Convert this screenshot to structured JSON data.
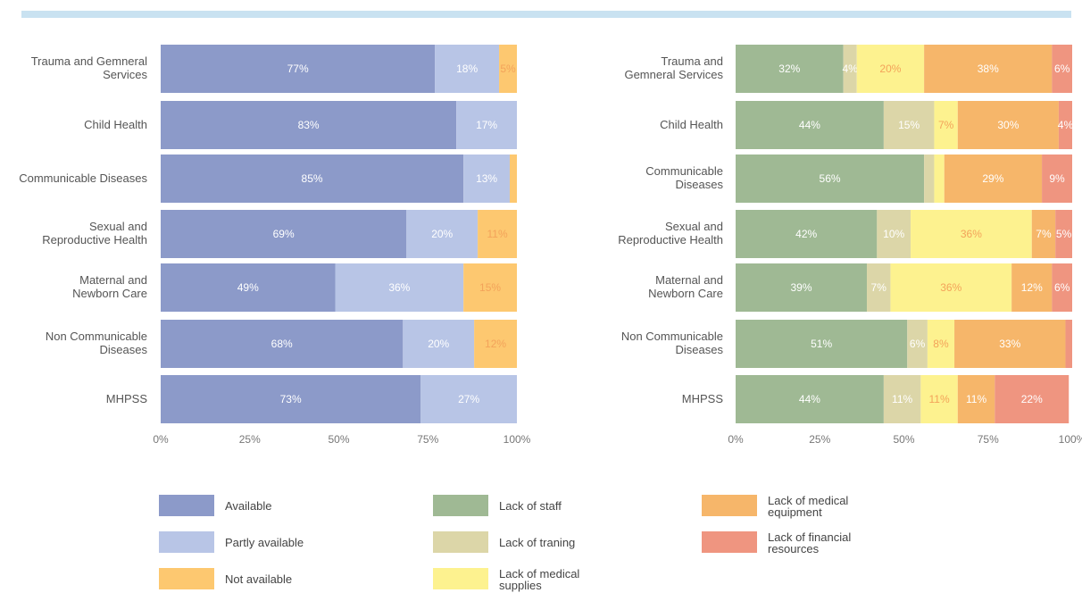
{
  "chart_data": [
    {
      "type": "bar",
      "orientation": "horizontal",
      "stacked": true,
      "categories": [
        "Trauma and Gemneral Services",
        "Child Health",
        "Communicable Diseases",
        "Sexual and Reproductive Health",
        "Maternal and Newborn Care",
        "Non Communicable Diseases",
        "MHPSS"
      ],
      "series": [
        {
          "name": "Available",
          "color": "#8c9ac9",
          "values": [
            77,
            83,
            85,
            69,
            49,
            68,
            73
          ]
        },
        {
          "name": "Partly available",
          "color": "#b8c5e6",
          "values": [
            18,
            17,
            13,
            20,
            36,
            20,
            27
          ]
        },
        {
          "name": "Not available",
          "color": "#fdc870",
          "values": [
            5,
            0,
            2,
            11,
            15,
            12,
            0
          ]
        }
      ],
      "data_labels": [
        [
          "77%",
          "18%",
          "5%"
        ],
        [
          "83%",
          "17%",
          ""
        ],
        [
          "85%",
          "13%",
          ""
        ],
        [
          "69%",
          "20%",
          "11%"
        ],
        [
          "49%",
          "36%",
          "15%"
        ],
        [
          "68%",
          "20%",
          "12%"
        ],
        [
          "73%",
          "27%",
          ""
        ]
      ],
      "x_ticks": [
        "0%",
        "25%",
        "50%",
        "75%",
        "100%"
      ],
      "xlim": [
        0,
        100
      ]
    },
    {
      "type": "bar",
      "orientation": "horizontal",
      "stacked": true,
      "categories": [
        "Trauma and Gemneral Services",
        "Child Health",
        "Communicable Diseases",
        "Sexual and Reproductive Health",
        "Maternal and Newborn Care",
        "Non Communicable Diseases",
        "MHPSS"
      ],
      "series": [
        {
          "name": "Lack of staff",
          "color": "#9fb994",
          "values": [
            32,
            44,
            56,
            42,
            39,
            51,
            44
          ]
        },
        {
          "name": "Lack of traning",
          "color": "#dcd6a8",
          "values": [
            4,
            15,
            3,
            10,
            7,
            6,
            11
          ]
        },
        {
          "name": "Lack of medical supplies",
          "color": "#fdf28f",
          "values": [
            20,
            7,
            3,
            36,
            36,
            8,
            11
          ]
        },
        {
          "name": "Lack of medical equipment",
          "color": "#f6b66a",
          "values": [
            38,
            30,
            29,
            7,
            12,
            33,
            11
          ]
        },
        {
          "name": "Lack of financial resources",
          "color": "#ef9580",
          "values": [
            6,
            4,
            9,
            5,
            6,
            2,
            22
          ]
        }
      ],
      "data_labels": [
        [
          "32%",
          "4%",
          "20%",
          "38%",
          "6%"
        ],
        [
          "44%",
          "15%",
          "7%",
          "30%",
          "4%"
        ],
        [
          "56%",
          "",
          "",
          "29%",
          "9%"
        ],
        [
          "42%",
          "10%",
          "36%",
          "7%",
          "5%"
        ],
        [
          "39%",
          "7%",
          "36%",
          "12%",
          "6%"
        ],
        [
          "51%",
          "6%",
          "8%",
          "33%",
          ""
        ],
        [
          "44%",
          "11%",
          "11%",
          "11%",
          "22%"
        ]
      ],
      "x_ticks": [
        "0%",
        "25%",
        "50%",
        "75%",
        "100%"
      ],
      "xlim": [
        0,
        100
      ]
    }
  ],
  "category_labels_left": [
    [
      "Trauma and Gemneral",
      "Services"
    ],
    [
      "Child Health"
    ],
    [
      "Communicable Diseases"
    ],
    [
      "Sexual and",
      "Reproductive Health"
    ],
    [
      "Maternal and",
      "Newborn Care"
    ],
    [
      "Non Communicable",
      "Diseases"
    ],
    [
      "MHPSS"
    ]
  ],
  "category_labels_right": [
    [
      "Trauma and",
      "Gemneral Services"
    ],
    [
      "Child Health"
    ],
    [
      "Communicable",
      "Diseases"
    ],
    [
      "Sexual and",
      "Reproductive Health"
    ],
    [
      "Maternal and",
      "Newborn Care"
    ],
    [
      "Non Communicable",
      "Diseases"
    ],
    [
      "MHPSS"
    ]
  ],
  "legend": {
    "available": "Available",
    "partly_available": "Partly available",
    "not_available": "Not available",
    "lack_staff": "Lack of staff",
    "lack_training": "Lack of traning",
    "lack_supplies_1": "Lack of medical",
    "lack_supplies_2": "supplies",
    "lack_equipment_1": "Lack of medical",
    "lack_equipment_2": "equipment",
    "lack_financial_1": "Lack of financial",
    "lack_financial_2": "resources"
  },
  "colors": {
    "top_rule": "#c9e2f1",
    "available": "#8c9ac9",
    "partly_available": "#b8c5e6",
    "not_available": "#fdc870",
    "lack_staff": "#9fb994",
    "lack_training": "#dcd6a8",
    "lack_supplies": "#fdf28f",
    "lack_equipment": "#f6b66a",
    "lack_financial": "#ef9580"
  }
}
